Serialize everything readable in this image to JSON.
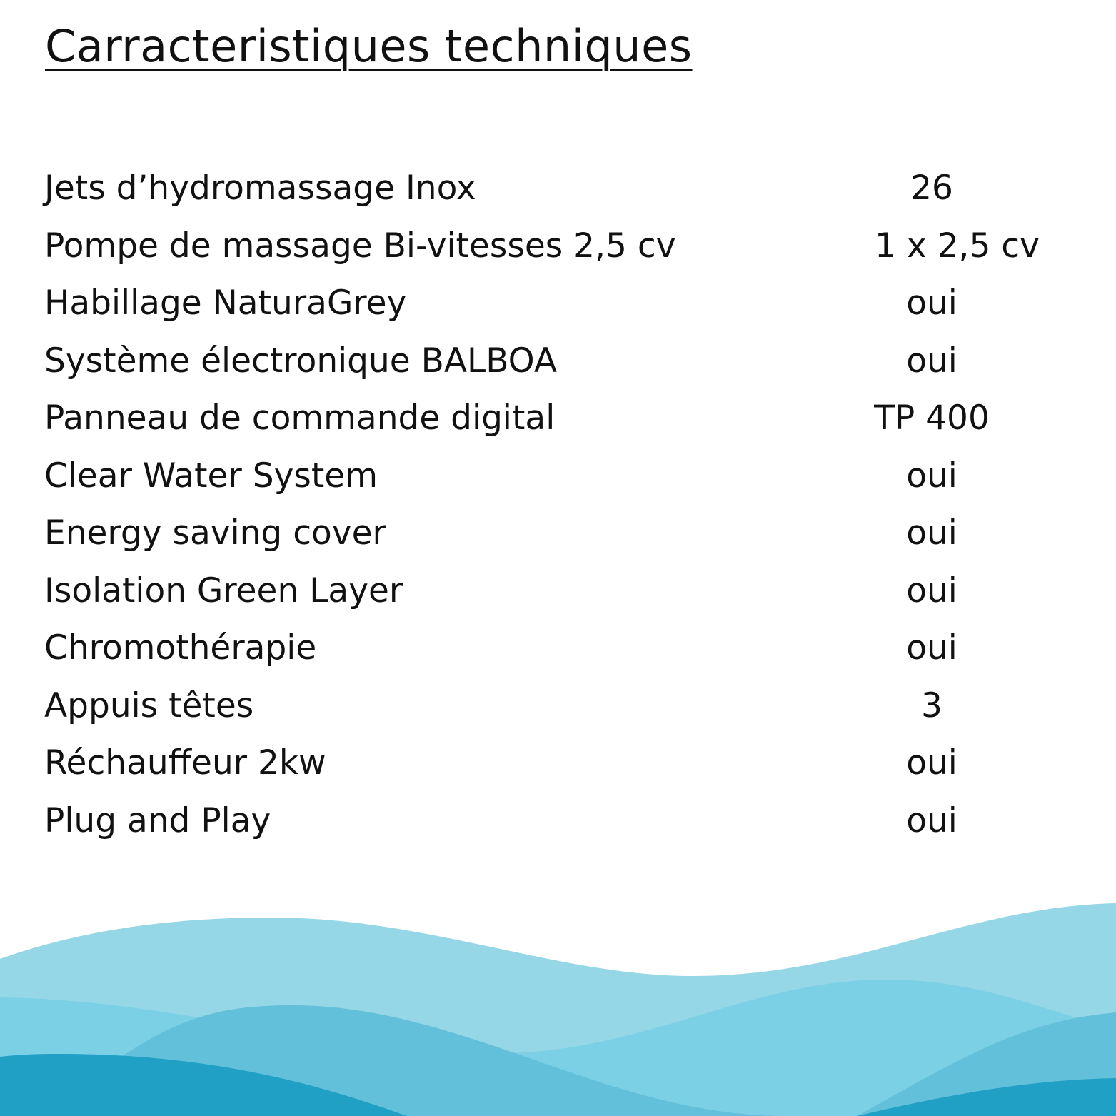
{
  "title": "Carracteristiques techniques",
  "specs": [
    {
      "label": "Jets d’hydromassage Inox",
      "value": "26"
    },
    {
      "label": "Pompe de massage Bi-vitesses 2,5 cv",
      "value": "1 x 2,5 cv"
    },
    {
      "label": "Habillage NaturaGrey",
      "value": "oui"
    },
    {
      "label": "Système électronique BALBOA",
      "value": "oui"
    },
    {
      "label": "Panneau de commande digital",
      "value": "TP 400"
    },
    {
      "label": "Clear Water System",
      "value": "oui"
    },
    {
      "label": "Energy saving cover",
      "value": "oui"
    },
    {
      "label": "Isolation Green Layer",
      "value": "oui"
    },
    {
      "label": "Chromothérapie",
      "value": "oui"
    },
    {
      "label": "Appuis têtes",
      "value": "3"
    },
    {
      "label": "Réchauffeur 2kw",
      "value": "oui"
    },
    {
      "label": "Plug and Play",
      "value": "oui"
    }
  ],
  "colors": {
    "wave1": "#96d7e7",
    "wave2": "#7bd0e6",
    "wave3": "#63c0da",
    "wave4": "#20a0c4"
  }
}
